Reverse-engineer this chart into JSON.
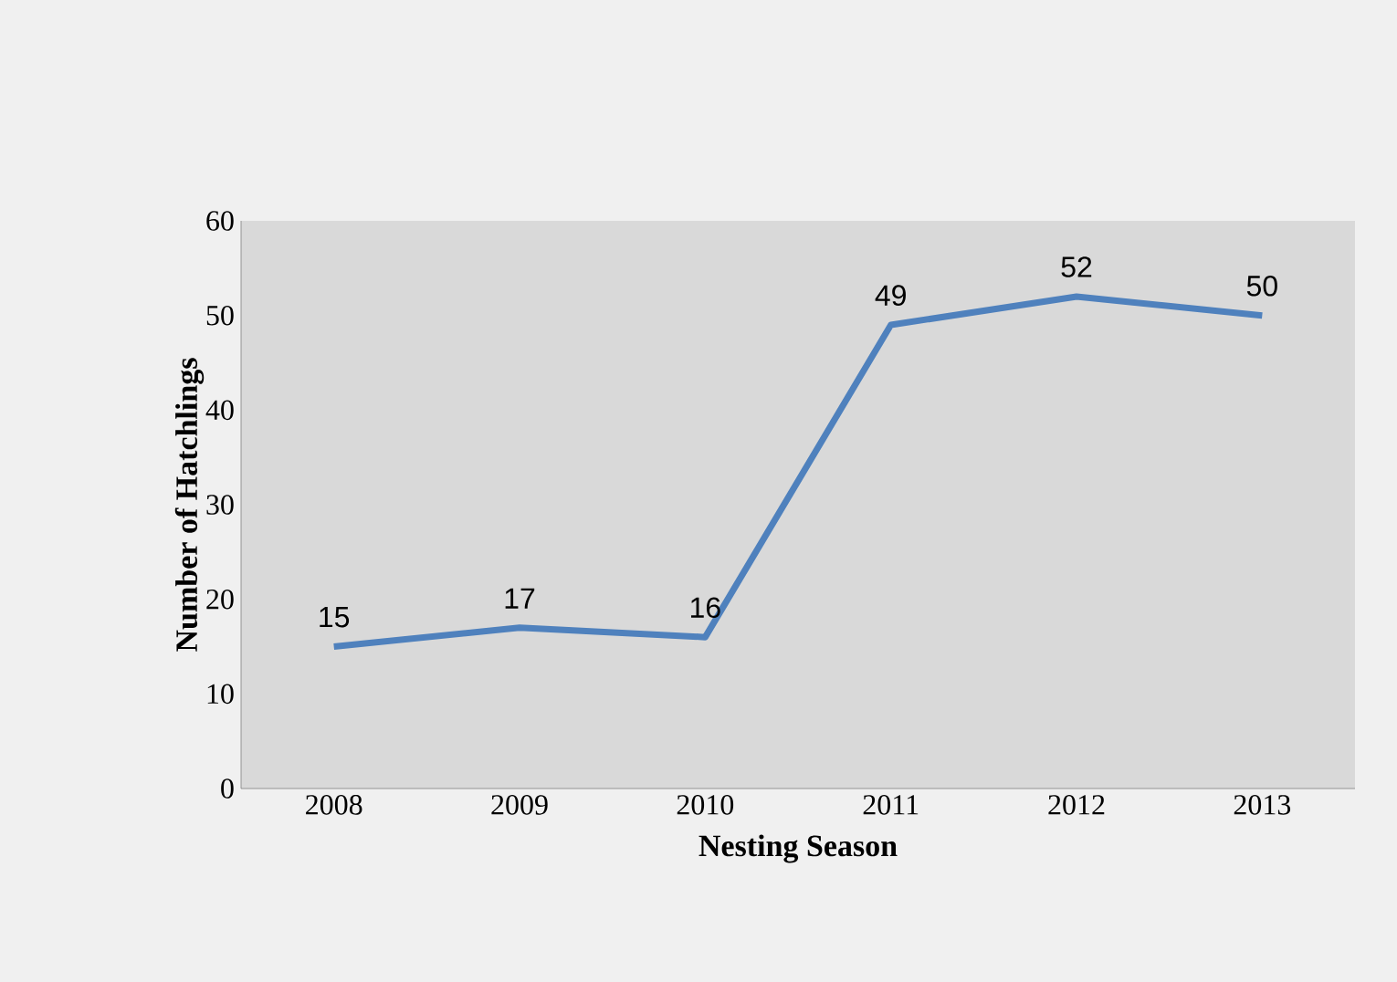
{
  "chart_data": {
    "type": "line",
    "xlabel": "Nesting Season",
    "ylabel": "Number of Hatchlings",
    "categories": [
      "2008",
      "2009",
      "2010",
      "2011",
      "2012",
      "2013"
    ],
    "series": [
      {
        "color": "#4f81bd",
        "values": [
          15,
          17,
          16,
          49,
          52,
          50
        ]
      }
    ],
    "ylim": [
      0,
      60
    ],
    "yticks": [
      0,
      10,
      20,
      30,
      40,
      50,
      60
    ],
    "data_labels": true,
    "grid": false,
    "marker": "none",
    "line_style": "solid"
  }
}
